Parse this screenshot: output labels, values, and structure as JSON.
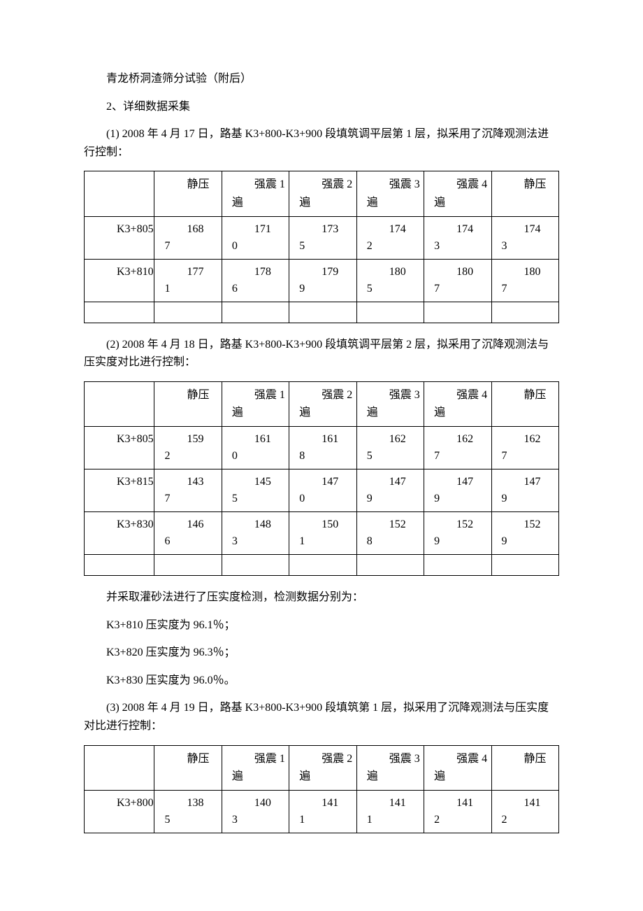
{
  "para1": "青龙桥洞渣筛分试验（附后）",
  "para2": "2、详细数据采集",
  "para3": "(1) 2008 年 4 月 17 日，路基 K3+800-K3+900 段填筑调平层第 1 层，拟采用了沉降观测法进行控制：",
  "headers": {
    "h1": "静压",
    "h2": "强震 1 遍",
    "h3": "强震 2 遍",
    "h4": "强震 3 遍",
    "h5": "强震 4 遍",
    "h6": "静压"
  },
  "table1": {
    "rows": [
      {
        "l": "K3+805",
        "v": [
          "1687",
          "1710",
          "1735",
          "1742",
          "1743",
          "1743"
        ]
      },
      {
        "l": "K3+810",
        "v": [
          "1771",
          "1786",
          "1799",
          "1805",
          "1807",
          "1807"
        ]
      }
    ]
  },
  "para4": "(2) 2008 年 4 月 18 日，路基 K3+800-K3+900 段填筑调平层第 2 层，拟采用了沉降观测法与压实度对比进行控制：",
  "table2": {
    "rows": [
      {
        "l": "K3+805",
        "v": [
          "1592",
          "1610",
          "1618",
          "1625",
          "1627",
          "1627"
        ]
      },
      {
        "l": "K3+815",
        "v": [
          "1437",
          "1455",
          "1470",
          "1479",
          "1479",
          "1479"
        ]
      },
      {
        "l": "K3+830",
        "v": [
          "1466",
          "1483",
          "1501",
          "1528",
          "1529",
          "1529"
        ]
      }
    ]
  },
  "para5": "并采取灌砂法进行了压实度检测，检测数据分别为：",
  "para6": "K3+810 压实度为 96.1％；",
  "para7": "K3+820 压实度为 96.3％；",
  "para8": "K3+830 压实度为 96.0％。",
  "para9": "(3) 2008 年 4 月 19 日，路基 K3+800-K3+900 段填筑第 1 层，拟采用了沉降观测法与压实度对比进行控制：",
  "table3": {
    "rows": [
      {
        "l": "K3+800",
        "v": [
          "1385",
          "1403",
          "1411",
          "1411",
          "1412",
          "1412"
        ]
      }
    ]
  }
}
